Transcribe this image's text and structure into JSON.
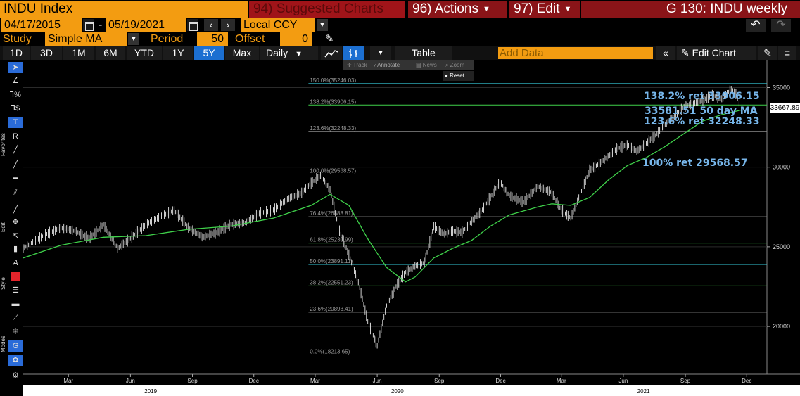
{
  "header": {
    "ticker": "INDU Index",
    "suggested": "94) Suggested Charts",
    "actions": "96) Actions",
    "edit": "97) Edit",
    "title": "G 130: INDU weekly"
  },
  "daterange": {
    "start": "04/17/2015",
    "end": "05/19/2021",
    "currency": "Local CCY"
  },
  "study": {
    "label": "Study",
    "type": "Simple MA",
    "period_label": "Period",
    "period": "50",
    "offset_label": "Offset",
    "offset": "0"
  },
  "toolbar": {
    "ranges": [
      "1D",
      "3D",
      "1M",
      "6M",
      "YTD",
      "1Y",
      "5Y",
      "Max"
    ],
    "active_range": "5Y",
    "frequency": "Daily",
    "table": "Table",
    "add_data_placeholder": "Add Data",
    "edit_chart": "Edit Chart"
  },
  "floatbar": {
    "track": "Track",
    "annotate": "Annotate",
    "news": "News",
    "zoom": "Zoom",
    "reset": "Reset"
  },
  "sidebar": {
    "favorites": "Favorites",
    "edit": "Edit",
    "style": "Style",
    "modes": "Modes"
  },
  "annotations": {
    "ret138": "138.2% ret 33906.15",
    "ma50": "33581.51 50 day MA",
    "ret123": "123.6% ret 32248.33",
    "ret100": "100% ret 29568.57"
  },
  "last_price": "33667.89",
  "chart_data": {
    "type": "line",
    "y_ticks": [
      20000,
      25000,
      30000,
      35000
    ],
    "y_range": [
      17000,
      36700
    ],
    "x_month_labels": [
      "Mar",
      "Jun",
      "Sep",
      "Dec",
      "Mar",
      "Jun",
      "Sep",
      "Dec",
      "Mar",
      "Jun",
      "Sep",
      "Dec"
    ],
    "x_year_labels": [
      "2019",
      "2020",
      "2021"
    ],
    "fib_levels": [
      {
        "label": "150.0%(35246.03)",
        "value": 35246.03,
        "color": "#35c8d8"
      },
      {
        "label": "138.2%(33906.15)",
        "value": 33906.15,
        "color": "#3fd14a"
      },
      {
        "label": "123.6%(32248.33)",
        "value": 32248.33,
        "color": "#8a8a8a"
      },
      {
        "label": "100.0%(29568.57)",
        "value": 29568.57,
        "color": "#e8414a"
      },
      {
        "label": "76.4%(26888.81)",
        "value": 26888.81,
        "color": "#8a8a8a"
      },
      {
        "label": "61.8%(25230.99)",
        "value": 25230.99,
        "color": "#3fd14a"
      },
      {
        "label": "50.0%(23891.11)",
        "value": 23891.11,
        "color": "#35c8d8"
      },
      {
        "label": "38.2%(22551.23)",
        "value": 22551.23,
        "color": "#3fd14a"
      },
      {
        "label": "23.6%(20893.41)",
        "value": 20893.41,
        "color": "#8a8a8a"
      },
      {
        "label": "0.0%(18213.65)",
        "value": 18213.65,
        "color": "#e8414a"
      }
    ],
    "price_series": {
      "name": "INDU",
      "points": [
        [
          "2018-12-24",
          24900
        ],
        [
          "2019-01-07",
          25300
        ],
        [
          "2019-01-28",
          25800
        ],
        [
          "2019-02-18",
          26200
        ],
        [
          "2019-03-11",
          26000
        ],
        [
          "2019-04-01",
          25500
        ],
        [
          "2019-04-22",
          26400
        ],
        [
          "2019-05-13",
          24900
        ],
        [
          "2019-06-03",
          25600
        ],
        [
          "2019-06-24",
          26400
        ],
        [
          "2019-07-15",
          26900
        ],
        [
          "2019-08-05",
          27300
        ],
        [
          "2019-08-26",
          26200
        ],
        [
          "2019-09-16",
          25600
        ],
        [
          "2019-10-07",
          25900
        ],
        [
          "2019-10-28",
          26400
        ],
        [
          "2019-11-18",
          26500
        ],
        [
          "2019-12-09",
          27100
        ],
        [
          "2019-12-30",
          27300
        ],
        [
          "2020-01-20",
          28000
        ],
        [
          "2020-02-10",
          28400
        ],
        [
          "2020-02-24",
          29000
        ],
        [
          "2020-03-09",
          29500
        ],
        [
          "2020-03-23",
          28600
        ],
        [
          "2020-04-06",
          26000
        ],
        [
          "2020-04-20",
          24500
        ],
        [
          "2020-05-04",
          22800
        ],
        [
          "2020-05-18",
          20300
        ],
        [
          "2020-06-01",
          18800
        ],
        [
          "2020-06-15",
          21300
        ],
        [
          "2020-06-29",
          22500
        ],
        [
          "2020-07-13",
          23400
        ],
        [
          "2020-07-27",
          23800
        ],
        [
          "2020-08-10",
          24000
        ],
        [
          "2020-08-24",
          26300
        ],
        [
          "2020-09-07",
          25800
        ],
        [
          "2020-09-21",
          26000
        ],
        [
          "2020-10-05",
          25900
        ],
        [
          "2020-10-19",
          26600
        ],
        [
          "2020-11-02",
          27200
        ],
        [
          "2020-11-16",
          28100
        ],
        [
          "2020-11-30",
          29100
        ],
        [
          "2020-12-14",
          28200
        ],
        [
          "2021-01-04",
          27800
        ],
        [
          "2021-01-25",
          28800
        ],
        [
          "2021-02-15",
          28400
        ],
        [
          "2021-03-01",
          27300
        ],
        [
          "2021-03-15",
          26800
        ],
        [
          "2021-03-29",
          28300
        ],
        [
          "2021-04-12",
          29800
        ],
        [
          "2021-04-26",
          30200
        ],
        [
          "2021-05-10",
          30700
        ],
        [
          "2021-05-24",
          31200
        ],
        [
          "2021-06-07",
          31400
        ],
        [
          "2021-06-21",
          31000
        ],
        [
          "2021-07-05",
          31500
        ],
        [
          "2021-07-19",
          32000
        ],
        [
          "2021-08-02",
          32700
        ],
        [
          "2021-08-16",
          33200
        ],
        [
          "2021-08-30",
          33800
        ],
        [
          "2021-09-13",
          34000
        ],
        [
          "2021-09-27",
          34200
        ],
        [
          "2021-10-11",
          34500
        ],
        [
          "2021-10-25",
          34300
        ],
        [
          "2021-11-08",
          34900
        ],
        [
          "2021-11-15",
          34600
        ],
        [
          "2021-11-22",
          33700
        ]
      ]
    },
    "ma_series": {
      "name": "50 day MA",
      "points": [
        [
          "2018-12-24",
          24300
        ],
        [
          "2019-02-18",
          25100
        ],
        [
          "2019-04-22",
          25600
        ],
        [
          "2019-06-24",
          25700
        ],
        [
          "2019-08-26",
          26100
        ],
        [
          "2019-10-28",
          26300
        ],
        [
          "2019-12-30",
          26800
        ],
        [
          "2020-02-24",
          27600
        ],
        [
          "2020-03-23",
          28300
        ],
        [
          "2020-04-20",
          27600
        ],
        [
          "2020-05-18",
          25500
        ],
        [
          "2020-06-15",
          23700
        ],
        [
          "2020-07-13",
          22800
        ],
        [
          "2020-07-27",
          23100
        ],
        [
          "2020-08-24",
          24300
        ],
        [
          "2020-09-21",
          24900
        ],
        [
          "2020-10-19",
          25400
        ],
        [
          "2020-11-16",
          26300
        ],
        [
          "2020-12-14",
          27000
        ],
        [
          "2021-01-25",
          27500
        ],
        [
          "2021-02-15",
          27700
        ],
        [
          "2021-03-15",
          27600
        ],
        [
          "2021-04-12",
          28100
        ],
        [
          "2021-05-10",
          29200
        ],
        [
          "2021-06-07",
          30100
        ],
        [
          "2021-07-05",
          30600
        ],
        [
          "2021-08-02",
          31300
        ],
        [
          "2021-08-30",
          32100
        ],
        [
          "2021-09-27",
          32900
        ],
        [
          "2021-10-25",
          33300
        ],
        [
          "2021-11-22",
          33580
        ]
      ]
    },
    "grid": true
  }
}
